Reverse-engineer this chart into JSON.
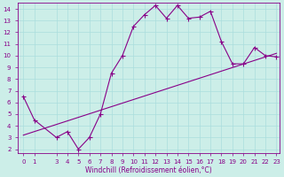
{
  "xlabel": "Windchill (Refroidissement éolien,°C)",
  "background_color": "#cceee8",
  "line_color": "#880088",
  "xlim": [
    -0.5,
    23.3
  ],
  "ylim": [
    1.7,
    14.5
  ],
  "yticks": [
    2,
    3,
    4,
    5,
    6,
    7,
    8,
    9,
    10,
    11,
    12,
    13,
    14
  ],
  "xticks": [
    0,
    1,
    3,
    4,
    5,
    6,
    7,
    8,
    9,
    10,
    11,
    12,
    13,
    14,
    15,
    16,
    17,
    18,
    19,
    20,
    21,
    22,
    23
  ],
  "xtick_labels": [
    "0",
    "1",
    "3",
    "4",
    "5",
    "6",
    "7",
    "8",
    "9",
    "10",
    "11",
    "12",
    "13",
    "14",
    "15",
    "16",
    "17",
    "18",
    "19",
    "20",
    "21",
    "22",
    "23"
  ],
  "series1_x": [
    0,
    1,
    3,
    4,
    5,
    6,
    7,
    8,
    9,
    10,
    11,
    12,
    13,
    14,
    15,
    16,
    17,
    18,
    19,
    20,
    21,
    22,
    23
  ],
  "series1_y": [
    6.5,
    4.5,
    3.0,
    3.5,
    2.0,
    3.0,
    5.0,
    8.5,
    10.0,
    12.5,
    13.5,
    14.3,
    13.2,
    14.3,
    13.2,
    13.3,
    13.8,
    11.2,
    9.3,
    9.3,
    10.7,
    10.0,
    9.9
  ],
  "series2_x": [
    0,
    23
  ],
  "series2_y": [
    3.2,
    10.2
  ],
  "grid_color": "#aadddd",
  "font_size": 5.0,
  "xlabel_fontsize": 5.5,
  "marker_size": 2.0
}
